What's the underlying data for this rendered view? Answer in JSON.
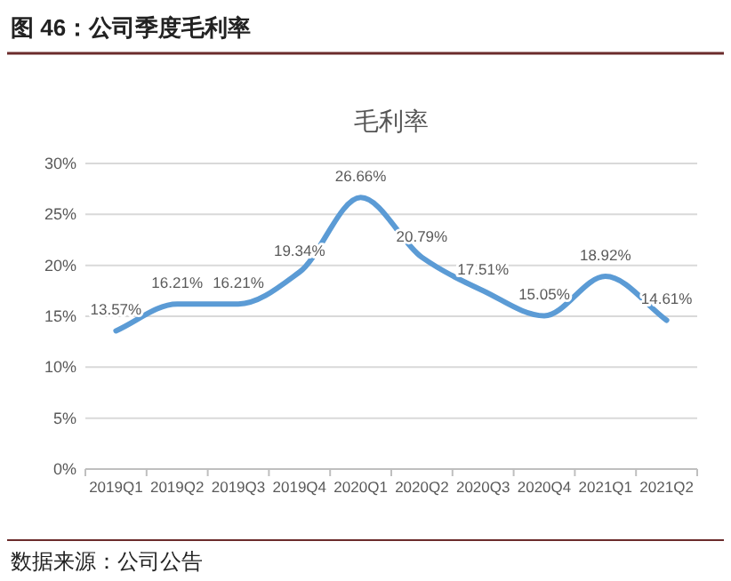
{
  "chart_data": {
    "type": "line",
    "title": "图 46：公司季度毛利率",
    "subtitle": "毛利率",
    "categories": [
      "2019Q1",
      "2019Q2",
      "2019Q3",
      "2019Q4",
      "2020Q1",
      "2020Q2",
      "2020Q3",
      "2020Q4",
      "2021Q1",
      "2021Q2"
    ],
    "series": [
      {
        "color": "#5b9bd5",
        "values": [
          13.57,
          16.21,
          16.21,
          19.34,
          26.66,
          20.79,
          17.51,
          15.05,
          18.92,
          14.61
        ],
        "value_labels": [
          "13.57%",
          "16.21%",
          "16.21%",
          "19.34%",
          "26.66%",
          "20.79%",
          "17.51%",
          "15.05%",
          "18.92%",
          "14.61%"
        ]
      }
    ],
    "ylim": [
      0,
      30
    ],
    "yticks": [
      {
        "value": 0,
        "label": "0%"
      },
      {
        "value": 5,
        "label": "5%"
      },
      {
        "value": 10,
        "label": "10%"
      },
      {
        "value": 15,
        "label": "15%"
      },
      {
        "value": 20,
        "label": "20%"
      },
      {
        "value": 25,
        "label": "25%"
      },
      {
        "value": 30,
        "label": "30%"
      }
    ],
    "grid": "y",
    "marker": "none",
    "line_style": "solid",
    "annotations": [
      "数据来源：公司公告"
    ]
  }
}
